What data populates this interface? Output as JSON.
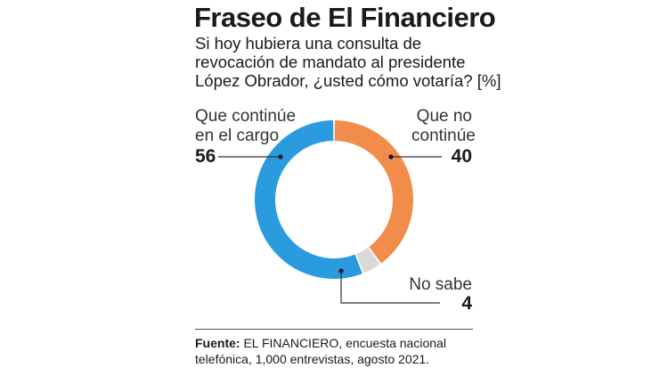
{
  "header": {
    "title": "Fraseo de El Financiero",
    "subtitle_lines": [
      "Si hoy hubiera una consulta de",
      "revocación de mandato al presidente",
      "López Obrador, ¿usted cómo votaría? [%]"
    ]
  },
  "chart_data": {
    "type": "pie",
    "style": "donut",
    "start_at": "top",
    "direction": "clockwise",
    "slices": [
      {
        "label_lines": [
          "Que no",
          "continúe"
        ],
        "value": 40,
        "color": "#f28c4a"
      },
      {
        "label_lines": [
          "No sabe"
        ],
        "value": 4,
        "color": "#d9d9d9"
      },
      {
        "label_lines": [
          "Que continúe",
          "en el cargo"
        ],
        "value": 56,
        "color": "#2b9be0"
      }
    ]
  },
  "footer": {
    "source_label": "Fuente:",
    "source_text": " EL FINANCIERO, encuesta nacional telefónica, 1,000 entrevistas, agosto 2021."
  }
}
